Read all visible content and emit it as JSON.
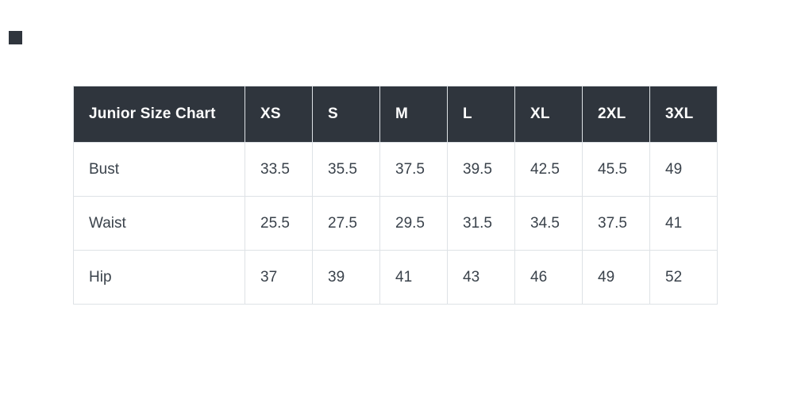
{
  "chart_data": {
    "type": "table",
    "title": "Junior Size Chart",
    "columns": [
      "XS",
      "S",
      "M",
      "L",
      "XL",
      "2XL",
      "3XL"
    ],
    "rows": [
      {
        "label": "Bust",
        "values": [
          "33.5",
          "35.5",
          "37.5",
          "39.5",
          "42.5",
          "45.5",
          "49"
        ]
      },
      {
        "label": "Waist",
        "values": [
          "25.5",
          "27.5",
          "29.5",
          "31.5",
          "34.5",
          "37.5",
          "41"
        ]
      },
      {
        "label": "Hip",
        "values": [
          "37",
          "39",
          "41",
          "43",
          "46",
          "49",
          "52"
        ]
      }
    ],
    "layout": {
      "legend": "none",
      "grid": "cell-borders"
    }
  },
  "colors": {
    "header_bg": "#2F353D",
    "header_text": "#FFFFFF",
    "body_text": "#3A424B",
    "border": "#DEE2E6",
    "page_bg": "#FFFFFF",
    "corner_square": "#2F353D"
  }
}
